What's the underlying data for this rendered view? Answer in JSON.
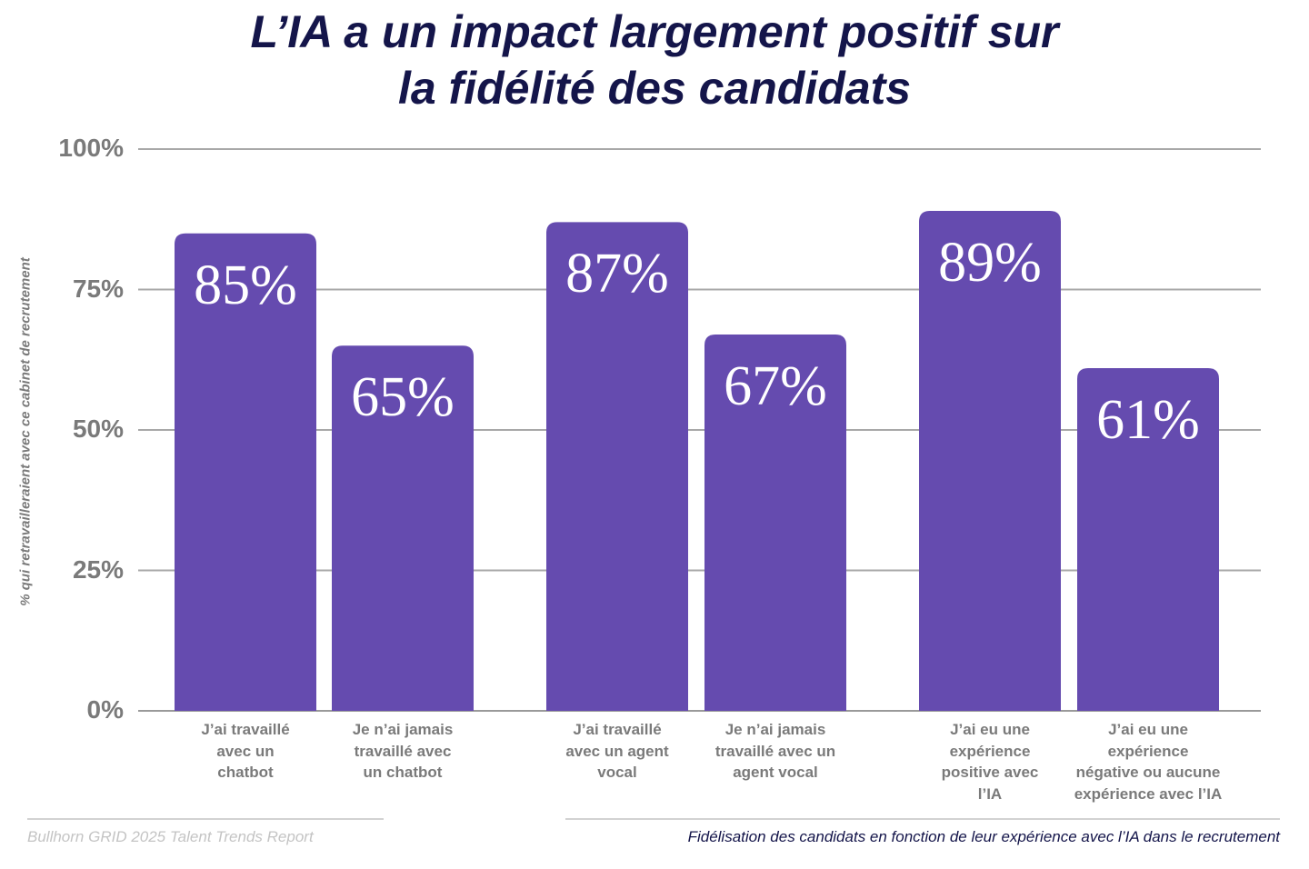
{
  "chart_data": {
    "type": "bar",
    "title": "L’IA a un impact largement positif sur la fidélité des candidats",
    "title_lines": [
      "L’IA a un impact largement positif sur",
      "la fidélité des candidats"
    ],
    "ylabel": "% qui retravailleraient avec ce cabinet de recrutement",
    "ylim": [
      0,
      100
    ],
    "yticks": [
      "0%",
      "25%",
      "50%",
      "75%",
      "100%"
    ],
    "grid": true,
    "bar_color": "#654baf",
    "categories": [
      "J’ai travaillé\navec un\nchatbot",
      "Je n’ai jamais\ntravaillé avec\nun chatbot",
      "J’ai travaillé\navec un agent\nvocal",
      "Je n’ai jamais\ntravaillé avec un\nagent vocal",
      "J’ai eu une\nexpérience\npositive avec\nl’IA",
      "J’ai eu une\nexpérience\nnégative ou aucune\nexpérience avec l’IA"
    ],
    "values": [
      85,
      65,
      87,
      67,
      89,
      61
    ],
    "data_labels": [
      "85%",
      "65%",
      "87%",
      "67%",
      "89%",
      "61%"
    ]
  },
  "footer": {
    "source": "Bullhorn GRID 2025 Talent Trends Report",
    "caption": "Fidélisation des candidats en fonction de leur expérience avec l’IA dans le recrutement"
  }
}
